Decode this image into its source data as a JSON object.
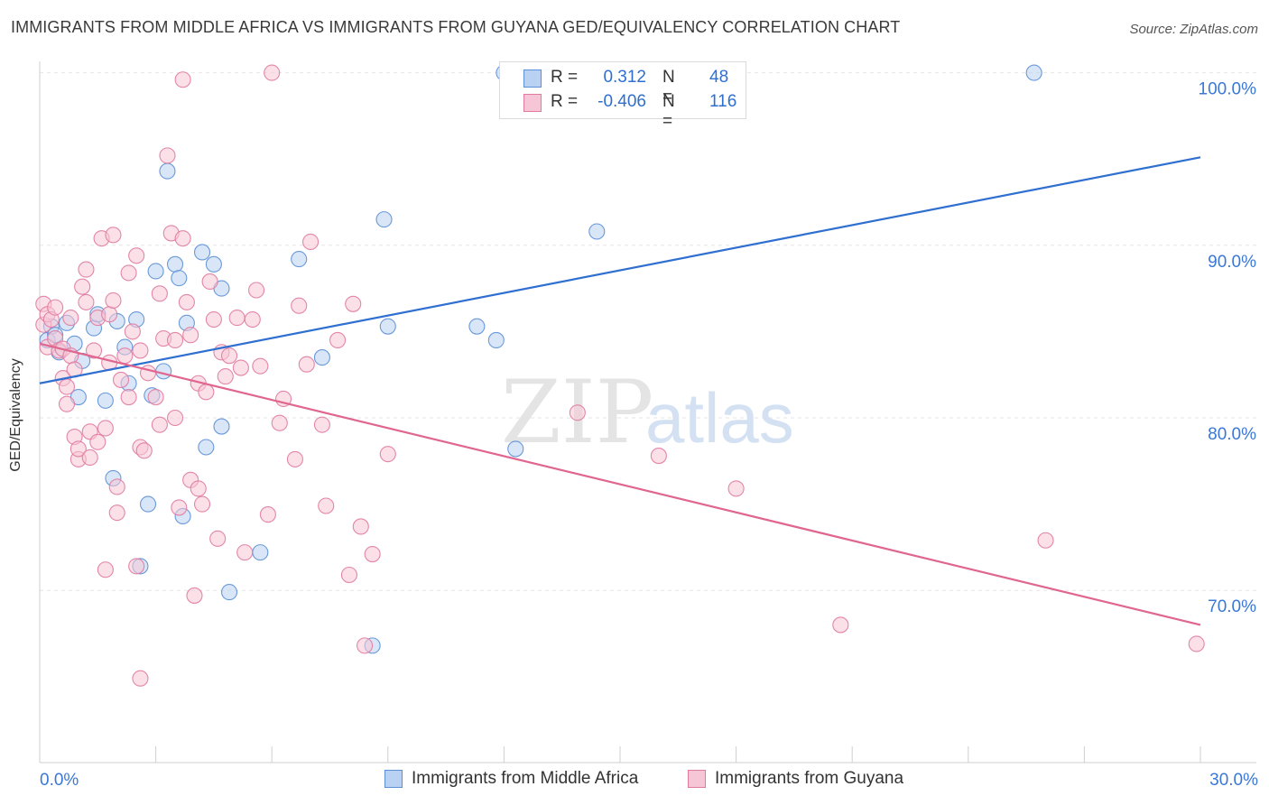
{
  "title": "IMMIGRANTS FROM MIDDLE AFRICA VS IMMIGRANTS FROM GUYANA GED/EQUIVALENCY CORRELATION CHART",
  "source": "Source: ZipAtlas.com",
  "watermark": {
    "zip": "ZIP",
    "atlas": "atlas"
  },
  "legend": {
    "r_label": "R =",
    "n_label": "N =",
    "rows": [
      {
        "r": "0.312",
        "n": "48",
        "color": "#5b8fd6",
        "fill": "#b9d1f2"
      },
      {
        "r": "-0.406",
        "n": "116",
        "color": "#e07aa0",
        "fill": "#f7c6d6"
      }
    ]
  },
  "chart_data": {
    "type": "scatter",
    "title": "IMMIGRANTS FROM MIDDLE AFRICA VS IMMIGRANTS FROM GUYANA GED/EQUIVALENCY CORRELATION CHART",
    "xlabel": "",
    "ylabel": "GED/Equivalency",
    "xlim": [
      0,
      30
    ],
    "ylim": [
      60.5,
      101.5
    ],
    "x_tick_labels": [
      "0.0%",
      "30.0%"
    ],
    "y_tick_labels": [
      "100.0%",
      "90.0%",
      "80.0%",
      "70.0%"
    ],
    "y_ticks": [
      100,
      90,
      80,
      70
    ],
    "grid": true,
    "legend_position": "top-center",
    "series": [
      {
        "name": "Immigrants from Middle Africa",
        "color": "#5b8fd6",
        "fill": "#b9d1f2",
        "trend": {
          "x": [
            0,
            30
          ],
          "y": [
            82.0,
            95.1
          ]
        },
        "points": [
          [
            0.2,
            84.5
          ],
          [
            0.3,
            85.3
          ],
          [
            0.4,
            84.8
          ],
          [
            0.5,
            83.8
          ],
          [
            0.7,
            85.5
          ],
          [
            0.9,
            84.3
          ],
          [
            1.0,
            81.2
          ],
          [
            1.1,
            83.3
          ],
          [
            1.4,
            85.2
          ],
          [
            1.5,
            86.0
          ],
          [
            1.7,
            81.0
          ],
          [
            1.9,
            76.5
          ],
          [
            2.0,
            85.6
          ],
          [
            2.2,
            84.1
          ],
          [
            2.3,
            82.0
          ],
          [
            2.5,
            85.7
          ],
          [
            2.6,
            71.4
          ],
          [
            2.8,
            75.0
          ],
          [
            2.9,
            81.3
          ],
          [
            3.0,
            88.5
          ],
          [
            3.2,
            82.7
          ],
          [
            3.3,
            94.3
          ],
          [
            3.5,
            88.9
          ],
          [
            3.6,
            88.1
          ],
          [
            3.7,
            74.3
          ],
          [
            3.8,
            85.5
          ],
          [
            4.2,
            89.6
          ],
          [
            4.3,
            78.3
          ],
          [
            4.5,
            88.9
          ],
          [
            4.7,
            79.5
          ],
          [
            4.7,
            87.5
          ],
          [
            4.9,
            69.9
          ],
          [
            5.7,
            72.2
          ],
          [
            6.7,
            89.2
          ],
          [
            7.3,
            83.5
          ],
          [
            8.6,
            66.8
          ],
          [
            8.9,
            91.5
          ],
          [
            9.0,
            85.3
          ],
          [
            11.3,
            85.3
          ],
          [
            11.8,
            84.5
          ],
          [
            12.0,
            100.0
          ],
          [
            12.3,
            78.2
          ],
          [
            14.4,
            90.8
          ],
          [
            25.7,
            100.0
          ]
        ]
      },
      {
        "name": "Immigrants from Guyana",
        "color": "#e07aa0",
        "fill": "#f7c6d6",
        "trend": {
          "x": [
            0,
            30
          ],
          "y": [
            84.3,
            68.0
          ]
        },
        "points": [
          [
            0.1,
            86.6
          ],
          [
            0.1,
            85.4
          ],
          [
            0.2,
            84.1
          ],
          [
            0.2,
            86.0
          ],
          [
            0.3,
            85.7
          ],
          [
            0.4,
            84.6
          ],
          [
            0.4,
            86.4
          ],
          [
            0.5,
            83.9
          ],
          [
            0.6,
            82.3
          ],
          [
            0.6,
            84.0
          ],
          [
            0.7,
            80.8
          ],
          [
            0.7,
            81.8
          ],
          [
            0.8,
            85.8
          ],
          [
            0.8,
            83.6
          ],
          [
            0.9,
            78.9
          ],
          [
            0.9,
            82.8
          ],
          [
            1.0,
            77.6
          ],
          [
            1.0,
            78.2
          ],
          [
            1.1,
            87.6
          ],
          [
            1.2,
            88.6
          ],
          [
            1.2,
            86.7
          ],
          [
            1.3,
            79.2
          ],
          [
            1.3,
            77.7
          ],
          [
            1.4,
            83.9
          ],
          [
            1.5,
            85.8
          ],
          [
            1.5,
            78.6
          ],
          [
            1.6,
            90.4
          ],
          [
            1.7,
            79.4
          ],
          [
            1.7,
            71.2
          ],
          [
            1.8,
            86.0
          ],
          [
            1.8,
            83.2
          ],
          [
            1.9,
            86.8
          ],
          [
            1.9,
            90.6
          ],
          [
            2.0,
            74.5
          ],
          [
            2.0,
            76.0
          ],
          [
            2.1,
            82.2
          ],
          [
            2.2,
            83.6
          ],
          [
            2.3,
            81.2
          ],
          [
            2.3,
            88.4
          ],
          [
            2.4,
            85.0
          ],
          [
            2.5,
            89.4
          ],
          [
            2.5,
            71.4
          ],
          [
            2.6,
            78.3
          ],
          [
            2.6,
            83.9
          ],
          [
            2.6,
            64.9
          ],
          [
            2.7,
            78.1
          ],
          [
            2.8,
            82.6
          ],
          [
            3.0,
            81.2
          ],
          [
            3.1,
            79.6
          ],
          [
            3.1,
            87.2
          ],
          [
            3.2,
            84.6
          ],
          [
            3.3,
            95.2
          ],
          [
            3.4,
            90.7
          ],
          [
            3.5,
            80.0
          ],
          [
            3.5,
            84.5
          ],
          [
            3.6,
            74.8
          ],
          [
            3.7,
            90.4
          ],
          [
            3.7,
            99.6
          ],
          [
            3.8,
            86.7
          ],
          [
            3.9,
            84.8
          ],
          [
            3.9,
            76.4
          ],
          [
            4.0,
            69.7
          ],
          [
            4.1,
            75.9
          ],
          [
            4.1,
            82.0
          ],
          [
            4.2,
            75.0
          ],
          [
            4.3,
            81.5
          ],
          [
            4.4,
            87.9
          ],
          [
            4.5,
            85.7
          ],
          [
            4.6,
            73.0
          ],
          [
            4.7,
            83.8
          ],
          [
            4.8,
            82.4
          ],
          [
            4.9,
            83.6
          ],
          [
            5.1,
            85.8
          ],
          [
            5.2,
            82.9
          ],
          [
            5.3,
            72.2
          ],
          [
            5.5,
            85.7
          ],
          [
            5.6,
            87.4
          ],
          [
            5.7,
            83.0
          ],
          [
            5.9,
            74.4
          ],
          [
            6.0,
            100.0
          ],
          [
            6.2,
            79.7
          ],
          [
            6.3,
            81.1
          ],
          [
            6.6,
            77.6
          ],
          [
            6.7,
            86.5
          ],
          [
            6.9,
            83.1
          ],
          [
            7.0,
            90.2
          ],
          [
            7.3,
            79.6
          ],
          [
            7.4,
            74.9
          ],
          [
            7.7,
            84.5
          ],
          [
            8.0,
            70.9
          ],
          [
            8.1,
            86.6
          ],
          [
            8.3,
            73.7
          ],
          [
            8.4,
            66.8
          ],
          [
            8.6,
            72.1
          ],
          [
            9.0,
            77.9
          ],
          [
            13.9,
            80.3
          ],
          [
            16.0,
            77.8
          ],
          [
            18.0,
            75.9
          ],
          [
            20.7,
            68.0
          ],
          [
            26.0,
            72.9
          ],
          [
            29.9,
            66.9
          ]
        ]
      }
    ]
  }
}
